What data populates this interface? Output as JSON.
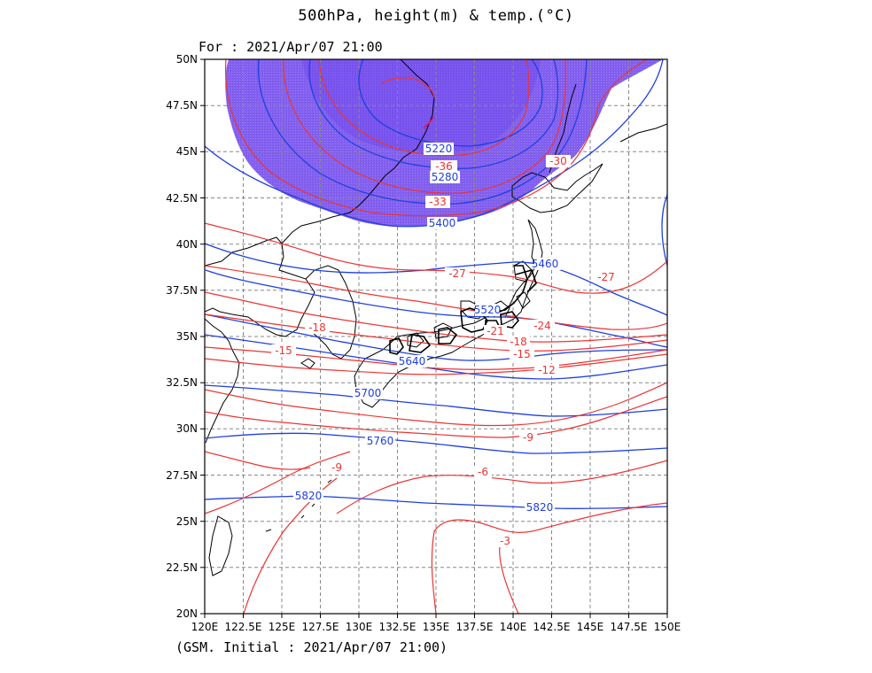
{
  "title": "500hPa, height(m) & temp.(°C)",
  "valid_time": "For : 2021/Apr/07 21:00",
  "footer": "(GSM. Initial : 2021/Apr/07 21:00)",
  "colors": {
    "height": "#1f3fe0",
    "temp": "#ee3333",
    "cold_fill": "#7a55ee",
    "coast": "#000000",
    "grid": "#888888"
  },
  "axes": {
    "lon_range": [
      120,
      150
    ],
    "lat_range": [
      20,
      50
    ],
    "lon_ticks": [
      "120E",
      "122.5E",
      "125E",
      "127.5E",
      "130E",
      "132.5E",
      "135E",
      "137.5E",
      "140E",
      "142.5E",
      "145E",
      "147.5E",
      "150E"
    ],
    "lat_ticks": [
      "20N",
      "22.5N",
      "25N",
      "27.5N",
      "30N",
      "32.5N",
      "35N",
      "37.5N",
      "40N",
      "42.5N",
      "45N",
      "47.5N",
      "50N"
    ]
  },
  "height_labels": [
    "5220",
    "5280",
    "5400",
    "5460",
    "5520",
    "5640",
    "5700",
    "5760",
    "5820",
    "5820"
  ],
  "temp_labels": [
    "-36",
    "-33",
    "-30",
    "-27",
    "-27",
    "-24",
    "-21",
    "-18",
    "-18",
    "-15",
    "-15",
    "-12",
    "-9",
    "-9",
    "-6",
    "-3"
  ]
}
